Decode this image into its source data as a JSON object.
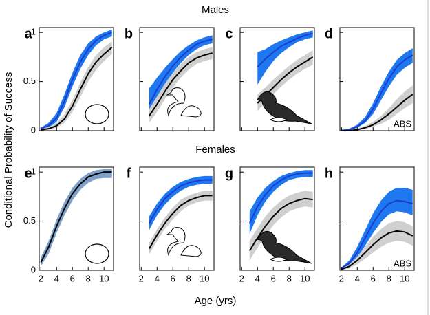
{
  "figure": {
    "row_titles": [
      "Males",
      "Females"
    ],
    "ylabel": "Conditional Probability of Success",
    "xlabel": "Age (yrs)"
  },
  "chart_data": [
    {
      "type": "line",
      "title": "a",
      "x": [
        2,
        3,
        4,
        5,
        6,
        7,
        8,
        9,
        10,
        11
      ],
      "xlim": [
        1.8,
        11.2
      ],
      "ylim": [
        0,
        1.05
      ],
      "xticks": [
        2,
        4,
        6,
        8,
        10
      ],
      "yticks": [
        0,
        0.5,
        1
      ],
      "show_xtick_labels": false,
      "show_ytick_labels": true,
      "series": [
        {
          "color": "#1a3fd0",
          "band_color": "#1f78f0",
          "values": [
            0.02,
            0.05,
            0.13,
            0.3,
            0.52,
            0.7,
            0.83,
            0.92,
            0.97,
            1.0
          ],
          "lower": [
            0.01,
            0.03,
            0.09,
            0.24,
            0.45,
            0.63,
            0.77,
            0.87,
            0.93,
            0.96
          ],
          "upper": [
            0.03,
            0.08,
            0.18,
            0.37,
            0.59,
            0.77,
            0.89,
            0.96,
            1.0,
            1.03
          ]
        },
        {
          "color": "#000000",
          "band_color": "#cfcfcf",
          "values": [
            0.01,
            0.02,
            0.05,
            0.12,
            0.25,
            0.42,
            0.58,
            0.7,
            0.78,
            0.85
          ],
          "lower": [
            0,
            0.01,
            0.03,
            0.08,
            0.19,
            0.34,
            0.5,
            0.62,
            0.71,
            0.78
          ],
          "upper": [
            0.02,
            0.04,
            0.08,
            0.17,
            0.31,
            0.49,
            0.65,
            0.77,
            0.85,
            0.91
          ]
        }
      ]
    },
    {
      "type": "line",
      "title": "b",
      "x": [
        2,
        3,
        4,
        5,
        6,
        7,
        8,
        9,
        10,
        11
      ],
      "xlim": [
        1.8,
        11.2
      ],
      "ylim": [
        0,
        1.05
      ],
      "xticks": [
        2,
        4,
        6,
        8,
        10
      ],
      "yticks": [
        0,
        0.5,
        1
      ],
      "show_xtick_labels": false,
      "show_ytick_labels": false,
      "series": [
        {
          "color": "#1a3fd0",
          "band_color": "#1f78f0",
          "values": [
            null,
            0.27,
            0.42,
            0.55,
            0.66,
            0.75,
            0.82,
            0.88,
            0.91,
            0.93
          ],
          "lower": [
            null,
            0.12,
            0.3,
            0.46,
            0.59,
            0.69,
            0.77,
            0.83,
            0.87,
            0.89
          ],
          "upper": [
            null,
            0.43,
            0.54,
            0.64,
            0.73,
            0.81,
            0.87,
            0.92,
            0.95,
            0.97
          ]
        },
        {
          "color": "#000000",
          "band_color": "#cfcfcf",
          "values": [
            null,
            0.15,
            0.27,
            0.4,
            0.52,
            0.61,
            0.69,
            0.74,
            0.77,
            0.79
          ],
          "lower": [
            null,
            0.08,
            0.19,
            0.32,
            0.44,
            0.54,
            0.62,
            0.68,
            0.71,
            0.73
          ],
          "upper": [
            null,
            0.22,
            0.35,
            0.48,
            0.59,
            0.68,
            0.75,
            0.8,
            0.83,
            0.85
          ]
        }
      ]
    },
    {
      "type": "line",
      "title": "c",
      "x": [
        2,
        3,
        4,
        5,
        6,
        7,
        8,
        9,
        10,
        11
      ],
      "xlim": [
        1.8,
        11.2
      ],
      "ylim": [
        0,
        1.05
      ],
      "xticks": [
        2,
        4,
        6,
        8,
        10
      ],
      "yticks": [
        0,
        0.5,
        1
      ],
      "show_xtick_labels": false,
      "show_ytick_labels": false,
      "series": [
        {
          "color": "#1a3fd0",
          "band_color": "#1f78f0",
          "values": [
            null,
            null,
            0.65,
            0.73,
            0.8,
            0.86,
            0.9,
            0.94,
            0.97,
            0.99
          ],
          "lower": [
            null,
            null,
            0.47,
            0.6,
            0.71,
            0.79,
            0.85,
            0.9,
            0.93,
            0.95
          ],
          "upper": [
            null,
            null,
            0.8,
            0.83,
            0.88,
            0.92,
            0.95,
            0.98,
            1.0,
            1.02
          ]
        },
        {
          "color": "#000000",
          "band_color": "#cfcfcf",
          "values": [
            null,
            null,
            0.28,
            0.36,
            0.44,
            0.52,
            0.59,
            0.65,
            0.7,
            0.75
          ],
          "lower": [
            null,
            null,
            0.2,
            0.29,
            0.37,
            0.45,
            0.52,
            0.58,
            0.63,
            0.67
          ],
          "upper": [
            null,
            null,
            0.37,
            0.44,
            0.52,
            0.59,
            0.66,
            0.72,
            0.77,
            0.82
          ]
        }
      ]
    },
    {
      "type": "line",
      "title": "d",
      "annotation": "ABS",
      "x": [
        2,
        3,
        4,
        5,
        6,
        7,
        8,
        9,
        10,
        11
      ],
      "xlim": [
        1.8,
        11.2
      ],
      "ylim": [
        0,
        1.05
      ],
      "xticks": [
        2,
        4,
        6,
        8,
        10
      ],
      "yticks": [
        0,
        0.5,
        1
      ],
      "show_xtick_labels": false,
      "show_ytick_labels": false,
      "series": [
        {
          "color": "#1a3fd0",
          "band_color": "#1f78f0",
          "values": [
            0,
            0.01,
            0.04,
            0.1,
            0.22,
            0.38,
            0.53,
            0.65,
            0.72,
            0.77
          ],
          "lower": [
            0,
            0.005,
            0.03,
            0.08,
            0.17,
            0.31,
            0.45,
            0.57,
            0.64,
            0.69
          ],
          "upper": [
            0.01,
            0.02,
            0.06,
            0.14,
            0.28,
            0.45,
            0.6,
            0.72,
            0.79,
            0.84
          ]
        },
        {
          "color": "#000000",
          "band_color": "#cfcfcf",
          "values": [
            0,
            0,
            0.01,
            0.03,
            0.06,
            0.11,
            0.17,
            0.24,
            0.31,
            0.37
          ],
          "lower": [
            0,
            0,
            0.005,
            0.015,
            0.04,
            0.07,
            0.11,
            0.17,
            0.23,
            0.28
          ],
          "upper": [
            0.005,
            0.01,
            0.02,
            0.05,
            0.09,
            0.15,
            0.23,
            0.32,
            0.4,
            0.46
          ]
        }
      ]
    },
    {
      "type": "line",
      "title": "e",
      "x": [
        2,
        3,
        4,
        5,
        6,
        7,
        8,
        9,
        10,
        11
      ],
      "xlim": [
        1.8,
        11.2
      ],
      "ylim": [
        0,
        1.05
      ],
      "xticks": [
        2,
        4,
        6,
        8,
        10
      ],
      "yticks": [
        0,
        0.5,
        1
      ],
      "show_xtick_labels": true,
      "show_ytick_labels": true,
      "series": [
        {
          "color": "#000000",
          "band_color": "#7fa0c8",
          "values": [
            0.08,
            0.24,
            0.45,
            0.63,
            0.78,
            0.88,
            0.95,
            0.98,
            1.0,
            1.0
          ],
          "lower": [
            0.04,
            0.17,
            0.38,
            0.56,
            0.71,
            0.82,
            0.89,
            0.93,
            0.94,
            0.94
          ],
          "upper": [
            0.13,
            0.3,
            0.52,
            0.7,
            0.84,
            0.93,
            0.99,
            1.02,
            1.03,
            1.03
          ]
        }
      ]
    },
    {
      "type": "line",
      "title": "f",
      "x": [
        2,
        3,
        4,
        5,
        6,
        7,
        8,
        9,
        10,
        11
      ],
      "xlim": [
        1.8,
        11.2
      ],
      "ylim": [
        0,
        1.05
      ],
      "xticks": [
        2,
        4,
        6,
        8,
        10
      ],
      "yticks": [
        0,
        0.5,
        1
      ],
      "show_xtick_labels": true,
      "show_ytick_labels": false,
      "series": [
        {
          "color": "#1a3fd0",
          "band_color": "#1f78f0",
          "values": [
            null,
            0.48,
            0.62,
            0.73,
            0.8,
            0.86,
            0.89,
            0.91,
            0.92,
            0.92
          ],
          "lower": [
            null,
            0.41,
            0.56,
            0.67,
            0.75,
            0.81,
            0.85,
            0.87,
            0.88,
            0.88
          ],
          "upper": [
            null,
            0.55,
            0.68,
            0.78,
            0.85,
            0.9,
            0.93,
            0.95,
            0.96,
            0.96
          ]
        },
        {
          "color": "#000000",
          "band_color": "#cfcfcf",
          "values": [
            null,
            0.22,
            0.36,
            0.48,
            0.58,
            0.66,
            0.71,
            0.74,
            0.76,
            0.76
          ],
          "lower": [
            null,
            0.16,
            0.3,
            0.42,
            0.52,
            0.6,
            0.66,
            0.69,
            0.71,
            0.71
          ],
          "upper": [
            null,
            0.28,
            0.42,
            0.54,
            0.64,
            0.72,
            0.76,
            0.79,
            0.81,
            0.81
          ]
        }
      ]
    },
    {
      "type": "line",
      "title": "g",
      "x": [
        2,
        3,
        4,
        5,
        6,
        7,
        8,
        9,
        10,
        11
      ],
      "xlim": [
        1.8,
        11.2
      ],
      "ylim": [
        0,
        1.05
      ],
      "xticks": [
        2,
        4,
        6,
        8,
        10
      ],
      "yticks": [
        0,
        0.5,
        1
      ],
      "show_xtick_labels": true,
      "show_ytick_labels": false,
      "series": [
        {
          "color": "#1a3fd0",
          "band_color": "#1f78f0",
          "values": [
            null,
            0.48,
            0.65,
            0.77,
            0.86,
            0.92,
            0.96,
            0.98,
            0.99,
            0.99
          ],
          "lower": [
            null,
            0.37,
            0.56,
            0.7,
            0.8,
            0.87,
            0.92,
            0.94,
            0.95,
            0.95
          ],
          "upper": [
            null,
            0.6,
            0.74,
            0.84,
            0.91,
            0.96,
            0.99,
            1.01,
            1.02,
            1.02
          ]
        },
        {
          "color": "#000000",
          "band_color": "#cfcfcf",
          "values": [
            null,
            0.2,
            0.33,
            0.45,
            0.55,
            0.63,
            0.68,
            0.71,
            0.73,
            0.72
          ],
          "lower": [
            null,
            0.1,
            0.23,
            0.35,
            0.46,
            0.54,
            0.6,
            0.63,
            0.65,
            0.64
          ],
          "upper": [
            null,
            0.3,
            0.43,
            0.55,
            0.64,
            0.71,
            0.76,
            0.79,
            0.81,
            0.8
          ]
        }
      ]
    },
    {
      "type": "line",
      "title": "h",
      "annotation": "ABS",
      "x": [
        2,
        3,
        4,
        5,
        6,
        7,
        8,
        9,
        10,
        11
      ],
      "xlim": [
        1.8,
        11.2
      ],
      "ylim": [
        0,
        1.05
      ],
      "xticks": [
        2,
        4,
        6,
        8,
        10
      ],
      "yticks": [
        0,
        0.5,
        1
      ],
      "show_xtick_labels": true,
      "show_ytick_labels": false,
      "series": [
        {
          "color": "#1a3fd0",
          "band_color": "#1f78f0",
          "values": [
            0.02,
            0.07,
            0.18,
            0.33,
            0.48,
            0.6,
            0.68,
            0.71,
            0.7,
            0.68
          ],
          "lower": [
            0.01,
            0.05,
            0.13,
            0.25,
            0.38,
            0.49,
            0.57,
            0.6,
            0.59,
            0.56
          ],
          "upper": [
            0.03,
            0.1,
            0.24,
            0.41,
            0.58,
            0.71,
            0.8,
            0.84,
            0.84,
            0.82
          ]
        },
        {
          "color": "#000000",
          "band_color": "#cfcfcf",
          "values": [
            0.01,
            0.04,
            0.1,
            0.18,
            0.26,
            0.33,
            0.38,
            0.4,
            0.39,
            0.35
          ],
          "lower": [
            0,
            0.02,
            0.06,
            0.12,
            0.18,
            0.24,
            0.28,
            0.3,
            0.29,
            0.25
          ],
          "upper": [
            0.02,
            0.06,
            0.14,
            0.24,
            0.34,
            0.42,
            0.48,
            0.5,
            0.49,
            0.45
          ]
        }
      ]
    }
  ]
}
